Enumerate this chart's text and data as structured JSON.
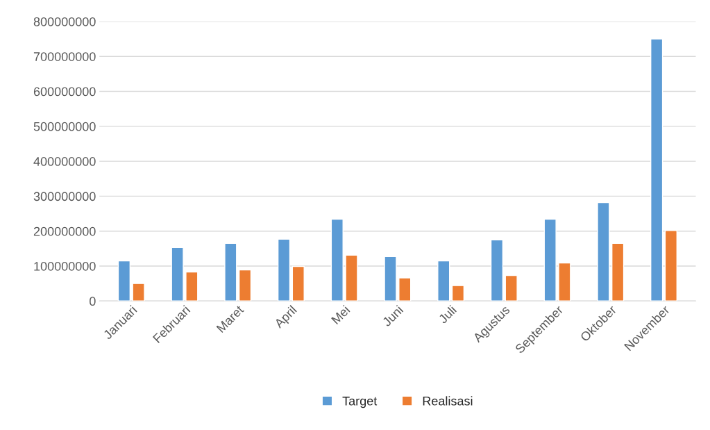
{
  "chart_data": {
    "type": "bar",
    "categories": [
      "Januari",
      "Februari",
      "Maret",
      "April",
      "Mei",
      "Juni",
      "Juli",
      "Agustus",
      "September",
      "Oktober",
      "November"
    ],
    "series": [
      {
        "name": "Target",
        "color": "#5b9bd5",
        "values": [
          115000000,
          153000000,
          165000000,
          177000000,
          234000000,
          127000000,
          115000000,
          175000000,
          234000000,
          282000000,
          750000000
        ]
      },
      {
        "name": "Realisasi",
        "color": "#ed7d31",
        "values": [
          50000000,
          83000000,
          89000000,
          99000000,
          131000000,
          66000000,
          44000000,
          73000000,
          109000000,
          165000000,
          202000000
        ]
      }
    ],
    "ylim": [
      0,
      800000000
    ],
    "yticks": [
      0,
      100000000,
      200000000,
      300000000,
      400000000,
      500000000,
      600000000,
      700000000,
      800000000
    ],
    "grid": "y",
    "legend": "bottom"
  }
}
